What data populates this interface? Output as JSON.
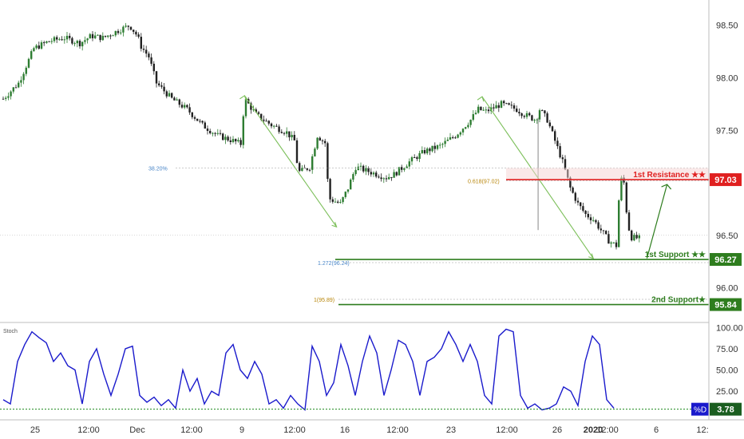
{
  "chart_data": [
    {
      "type": "candlestick",
      "title": "",
      "ylim": [
        95.7,
        98.65
      ],
      "y_ticks": [
        96.0,
        96.5,
        97.0,
        97.5,
        98.0,
        98.5
      ],
      "y_tick_labels": [
        "96.00",
        "96.50",
        "97.00",
        "97.50",
        "98.00",
        "98.50"
      ],
      "x_tick_labels": [
        "25",
        "12:00",
        "Dec",
        "12:00",
        "9",
        "12:00",
        "16",
        "12:00",
        "23",
        "12:00",
        "26",
        "12:00",
        "2020",
        "6",
        "12:"
      ],
      "grid": false,
      "close_path": [
        [
          0,
          97.8
        ],
        [
          2,
          97.95
        ],
        [
          4,
          98.28
        ],
        [
          6,
          98.35
        ],
        [
          8,
          98.38
        ],
        [
          10,
          98.33
        ],
        [
          11.5,
          98.4
        ],
        [
          13,
          98.38
        ],
        [
          15,
          98.45
        ],
        [
          16.5,
          98.5
        ],
        [
          17.5,
          98.4
        ],
        [
          18,
          98.3
        ],
        [
          19,
          98.2
        ],
        [
          20,
          97.95
        ],
        [
          22,
          97.8
        ],
        [
          24,
          97.7
        ],
        [
          26,
          97.55
        ],
        [
          28,
          97.45
        ],
        [
          30,
          97.4
        ],
        [
          31,
          97.37
        ],
        [
          31.5,
          97.8
        ],
        [
          33,
          97.65
        ],
        [
          35,
          97.55
        ],
        [
          37,
          97.48
        ],
        [
          38,
          97.4
        ],
        [
          38.5,
          97.1
        ],
        [
          40,
          97.15
        ],
        [
          41,
          97.45
        ],
        [
          42,
          97.38
        ],
        [
          42.5,
          96.85
        ],
        [
          44,
          96.8
        ],
        [
          45,
          96.95
        ],
        [
          46,
          97.15
        ],
        [
          48,
          97.1
        ],
        [
          50,
          97.05
        ],
        [
          51,
          97.08
        ],
        [
          53,
          97.2
        ],
        [
          55,
          97.3
        ],
        [
          57,
          97.35
        ],
        [
          59,
          97.45
        ],
        [
          61,
          97.6
        ],
        [
          62,
          97.7
        ],
        [
          63,
          97.68
        ],
        [
          65,
          97.75
        ],
        [
          67,
          97.7
        ],
        [
          68,
          97.65
        ],
        [
          69.5,
          97.6
        ],
        [
          70,
          97.7
        ],
        [
          71,
          97.6
        ],
        [
          72,
          97.4
        ],
        [
          73,
          97.2
        ],
        [
          74,
          96.95
        ],
        [
          75,
          96.8
        ],
        [
          76,
          96.7
        ],
        [
          77,
          96.65
        ],
        [
          78,
          96.55
        ],
        [
          79,
          96.45
        ],
        [
          80,
          96.4
        ],
        [
          80.5,
          97.05
        ],
        [
          81,
          97.0
        ],
        [
          81.5,
          96.6
        ],
        [
          82,
          96.48
        ],
        [
          83,
          96.47
        ]
      ],
      "y_reference_price": 96.5,
      "levels": [
        {
          "label": "1st Resistance ★★",
          "value": 97.03,
          "value_label": "97.03",
          "color": "#e02020"
        },
        {
          "label": "1st Support ★★",
          "value": 96.27,
          "value_label": "96.27",
          "color": "#2e7d1e"
        },
        {
          "label": "2nd Support★",
          "value": 95.84,
          "value_label": "95.84",
          "color": "#2e7d1e"
        }
      ],
      "fib_annotations": [
        {
          "label": "38.20%",
          "value": 97.14,
          "color": "#4a86c8"
        },
        {
          "label": "0.618(97.02)",
          "value": 97.02,
          "color": "#b8860b"
        },
        {
          "label": "1.272(96.24)",
          "value": 96.24,
          "color": "#4a86c8"
        },
        {
          "label": "1(95.89)",
          "value": 95.89,
          "color": "#b8860b"
        }
      ],
      "zigzag_paths": [
        {
          "points": [
            [
              31.5,
              97.83
            ],
            [
              43.5,
              96.58
            ]
          ]
        },
        {
          "points": [
            [
              62.5,
              97.82
            ],
            [
              77,
              96.28
            ]
          ]
        }
      ],
      "projection_arrow": {
        "points": [
          [
            84,
            96.28
          ],
          [
            86,
            97.03
          ]
        ]
      },
      "colors": {
        "up": "#2e7d32",
        "down": "#222222",
        "axis_text": "#333333",
        "zigzag": "#7cbf5a"
      }
    },
    {
      "type": "line",
      "label": "Stoch",
      "ylim": [
        -5,
        105
      ],
      "y_ticks": [
        25,
        50,
        75,
        100
      ],
      "y_tick_labels": [
        "25.00",
        "50.00",
        "75.00",
        "100.00"
      ],
      "series": [
        {
          "name": "%D",
          "current_value": "3.78",
          "color": "#1a1acc",
          "values": [
            [
              0,
              15
            ],
            [
              1,
              10
            ],
            [
              2,
              60
            ],
            [
              3,
              80
            ],
            [
              4,
              95
            ],
            [
              5,
              88
            ],
            [
              6,
              82
            ],
            [
              7,
              60
            ],
            [
              8,
              70
            ],
            [
              9,
              55
            ],
            [
              10,
              50
            ],
            [
              11,
              10
            ],
            [
              12,
              60
            ],
            [
              13,
              75
            ],
            [
              14,
              45
            ],
            [
              15,
              20
            ],
            [
              16,
              45
            ],
            [
              17,
              75
            ],
            [
              18,
              78
            ],
            [
              19,
              20
            ],
            [
              20,
              12
            ],
            [
              21,
              18
            ],
            [
              22,
              8
            ],
            [
              23,
              15
            ],
            [
              24,
              5
            ],
            [
              25,
              50
            ],
            [
              26,
              25
            ],
            [
              27,
              40
            ],
            [
              28,
              10
            ],
            [
              29,
              25
            ],
            [
              30,
              20
            ],
            [
              31,
              70
            ],
            [
              32,
              80
            ],
            [
              33,
              50
            ],
            [
              34,
              40
            ],
            [
              35,
              60
            ],
            [
              36,
              45
            ],
            [
              37,
              10
            ],
            [
              38,
              15
            ],
            [
              39,
              5
            ],
            [
              40,
              20
            ],
            [
              41,
              10
            ],
            [
              42,
              3
            ],
            [
              43,
              78
            ],
            [
              44,
              60
            ],
            [
              45,
              20
            ],
            [
              46,
              35
            ],
            [
              47,
              80
            ],
            [
              48,
              55
            ],
            [
              49,
              20
            ],
            [
              50,
              60
            ],
            [
              51,
              90
            ],
            [
              52,
              70
            ],
            [
              53,
              20
            ],
            [
              54,
              50
            ],
            [
              55,
              85
            ],
            [
              56,
              80
            ],
            [
              57,
              60
            ],
            [
              58,
              20
            ],
            [
              59,
              60
            ],
            [
              60,
              65
            ],
            [
              61,
              75
            ],
            [
              62,
              95
            ],
            [
              63,
              80
            ],
            [
              64,
              60
            ],
            [
              65,
              80
            ],
            [
              66,
              60
            ],
            [
              67,
              20
            ],
            [
              68,
              10
            ],
            [
              69,
              90
            ],
            [
              70,
              98
            ],
            [
              71,
              95
            ],
            [
              72,
              20
            ],
            [
              73,
              5
            ],
            [
              74,
              10
            ],
            [
              75,
              3
            ],
            [
              76,
              5
            ],
            [
              77,
              10
            ],
            [
              78,
              30
            ],
            [
              79,
              25
            ],
            [
              80,
              8
            ],
            [
              81,
              60
            ],
            [
              82,
              90
            ],
            [
              83,
              80
            ],
            [
              84,
              15
            ],
            [
              85,
              5
            ]
          ]
        }
      ],
      "thresholds": [
        3.78
      ]
    }
  ]
}
